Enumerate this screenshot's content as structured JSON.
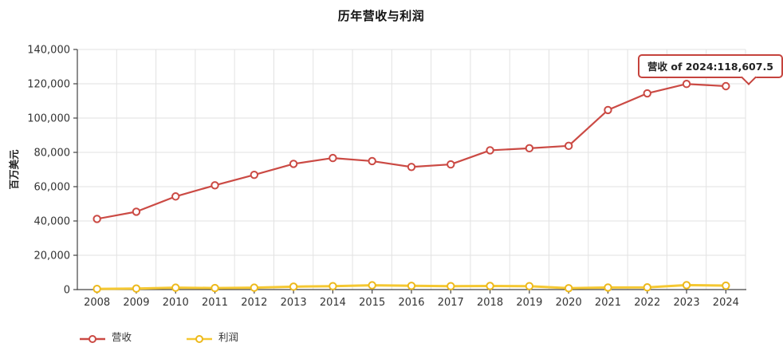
{
  "colors": {
    "accent": "#c5433d",
    "axis": "#444444",
    "grid": "#e2e2e2",
    "tick_text": "#333333",
    "background": "#ffffff"
  },
  "chart_data": {
    "type": "line",
    "title": "历年营收与利润",
    "xlabel": "",
    "ylabel": "百万美元",
    "categories": [
      "2008",
      "2009",
      "2010",
      "2011",
      "2012",
      "2013",
      "2014",
      "2015",
      "2016",
      "2017",
      "2018",
      "2019",
      "2020",
      "2021",
      "2022",
      "2023",
      "2024"
    ],
    "ylim": [
      0,
      140000
    ],
    "grid": true,
    "legend_position": "bottom-left",
    "y_ticks": [
      {
        "value": 0,
        "label": "0"
      },
      {
        "value": 20000,
        "label": "20,000"
      },
      {
        "value": 40000,
        "label": "40,000"
      },
      {
        "value": 60000,
        "label": "60,000"
      },
      {
        "value": 80000,
        "label": "80,000"
      },
      {
        "value": 100000,
        "label": "100,000"
      },
      {
        "value": 120000,
        "label": "120,000"
      },
      {
        "value": 140000,
        "label": "140,000"
      }
    ],
    "series": [
      {
        "name": "营收",
        "color": "#cb4a44",
        "marker_color": "#cb4a44",
        "line_width": 2.2,
        "values": [
          41200,
          45400,
          54300,
          60800,
          66900,
          73300,
          76700,
          74900,
          71500,
          73000,
          81200,
          82400,
          83800,
          104700,
          114400,
          119900,
          118607.5
        ]
      },
      {
        "name": "利润",
        "color": "#f5c832",
        "marker_color": "#edb91c",
        "line_width": 3,
        "values": [
          400,
          600,
          1100,
          900,
          1100,
          1700,
          2000,
          2500,
          2200,
          2000,
          2100,
          2000,
          800,
          1200,
          1300,
          2600,
          2300
        ]
      }
    ],
    "tooltip": {
      "series": "营收",
      "category": "2024",
      "value": "118,607.5",
      "text": "营收 of 2024:118,607.5"
    }
  }
}
